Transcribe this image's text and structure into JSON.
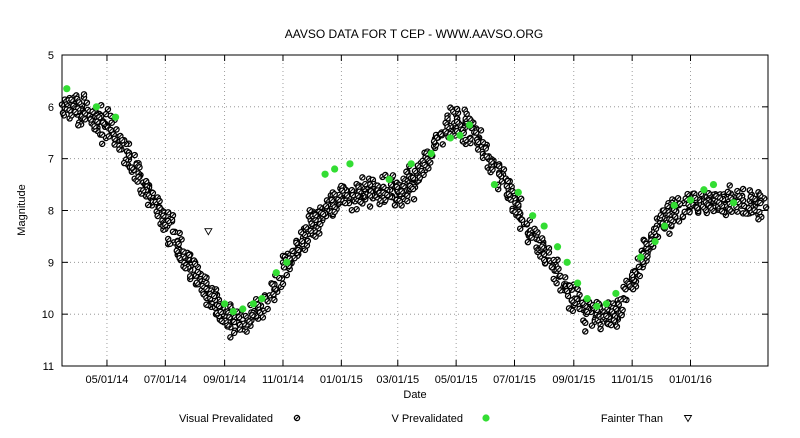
{
  "chart_data": {
    "type": "scatter",
    "title": "AAVSO DATA FOR T CEP - WWW.AAVSO.ORG",
    "xlabel": "Date",
    "ylabel": "Magnitude",
    "y_inverted": true,
    "ylim": [
      5,
      11
    ],
    "xlim": [
      "2014-03-15",
      "2016-03-22"
    ],
    "y_ticks": [
      "5",
      "6",
      "7",
      "8",
      "9",
      "10",
      "11"
    ],
    "x_ticks": [
      {
        "date": "2014-05-01",
        "label": "05/01/14"
      },
      {
        "date": "2014-07-01",
        "label": "07/01/14"
      },
      {
        "date": "2014-09-01",
        "label": "09/01/14"
      },
      {
        "date": "2014-11-01",
        "label": "11/01/14"
      },
      {
        "date": "2015-01-01",
        "label": "01/01/15"
      },
      {
        "date": "2015-03-01",
        "label": "03/01/15"
      },
      {
        "date": "2015-05-01",
        "label": "05/01/15"
      },
      {
        "date": "2015-07-01",
        "label": "07/01/15"
      },
      {
        "date": "2015-09-01",
        "label": "09/01/15"
      },
      {
        "date": "2015-11-01",
        "label": "11/01/15"
      },
      {
        "date": "2016-01-01",
        "label": "01/01/16"
      }
    ],
    "grid": true,
    "legend_position": "bottom",
    "series": [
      {
        "name": "Visual Prevalidated",
        "marker": "circle-hatched",
        "color": "#000000",
        "trend": [
          [
            "2014-03-15",
            6.1
          ],
          [
            "2014-04-01",
            6.0
          ],
          [
            "2014-05-01",
            6.35
          ],
          [
            "2014-06-01",
            7.2
          ],
          [
            "2014-07-01",
            8.2
          ],
          [
            "2014-08-01",
            9.2
          ],
          [
            "2014-08-20",
            9.7
          ],
          [
            "2014-09-01",
            10.05
          ],
          [
            "2014-09-20",
            10.2
          ],
          [
            "2014-10-10",
            9.9
          ],
          [
            "2014-11-01",
            9.2
          ],
          [
            "2014-12-01",
            8.3
          ],
          [
            "2015-01-01",
            7.75
          ],
          [
            "2015-02-01",
            7.6
          ],
          [
            "2015-03-01",
            7.65
          ],
          [
            "2015-03-25",
            7.3
          ],
          [
            "2015-04-15",
            6.5
          ],
          [
            "2015-05-01",
            6.3
          ],
          [
            "2015-05-20",
            6.5
          ],
          [
            "2015-06-15",
            7.3
          ],
          [
            "2015-07-15",
            8.3
          ],
          [
            "2015-08-15",
            9.2
          ],
          [
            "2015-09-01",
            9.7
          ],
          [
            "2015-09-20",
            10.0
          ],
          [
            "2015-10-15",
            10.0
          ],
          [
            "2015-11-01",
            9.4
          ],
          [
            "2015-12-01",
            8.2
          ],
          [
            "2016-01-01",
            7.85
          ],
          [
            "2016-03-22",
            7.85
          ]
        ]
      },
      {
        "name": "V Prevalidated",
        "marker": "circle",
        "color": "#33dd33",
        "points": [
          [
            "2014-03-20",
            5.65
          ],
          [
            "2014-04-20",
            6.0
          ],
          [
            "2014-05-10",
            6.2
          ],
          [
            "2014-09-01",
            9.8
          ],
          [
            "2014-09-10",
            9.95
          ],
          [
            "2014-09-20",
            9.9
          ],
          [
            "2014-10-01",
            9.8
          ],
          [
            "2014-10-10",
            9.7
          ],
          [
            "2014-10-25",
            9.2
          ],
          [
            "2014-11-05",
            9.0
          ],
          [
            "2014-12-15",
            7.3
          ],
          [
            "2014-12-25",
            7.2
          ],
          [
            "2015-01-10",
            7.1
          ],
          [
            "2015-02-20",
            7.4
          ],
          [
            "2015-03-15",
            7.1
          ],
          [
            "2015-04-05",
            6.9
          ],
          [
            "2015-04-25",
            6.6
          ],
          [
            "2015-05-05",
            6.55
          ],
          [
            "2015-05-15",
            6.35
          ],
          [
            "2015-06-10",
            7.5
          ],
          [
            "2015-07-05",
            7.65
          ],
          [
            "2015-07-20",
            8.1
          ],
          [
            "2015-08-01",
            8.3
          ],
          [
            "2015-08-15",
            8.7
          ],
          [
            "2015-08-25",
            9.0
          ],
          [
            "2015-09-05",
            9.4
          ],
          [
            "2015-09-15",
            9.7
          ],
          [
            "2015-09-25",
            9.85
          ],
          [
            "2015-10-05",
            9.8
          ],
          [
            "2015-10-15",
            9.6
          ],
          [
            "2015-11-10",
            8.9
          ],
          [
            "2015-11-25",
            8.6
          ],
          [
            "2015-12-05",
            8.3
          ],
          [
            "2015-12-15",
            7.9
          ],
          [
            "2016-01-01",
            7.8
          ],
          [
            "2016-01-15",
            7.6
          ],
          [
            "2016-01-25",
            7.5
          ],
          [
            "2016-02-15",
            7.85
          ]
        ]
      },
      {
        "name": "Fainter Than",
        "marker": "triangle-down-open",
        "color": "#000000",
        "points": [
          [
            "2014-08-15",
            8.4
          ]
        ]
      }
    ]
  }
}
